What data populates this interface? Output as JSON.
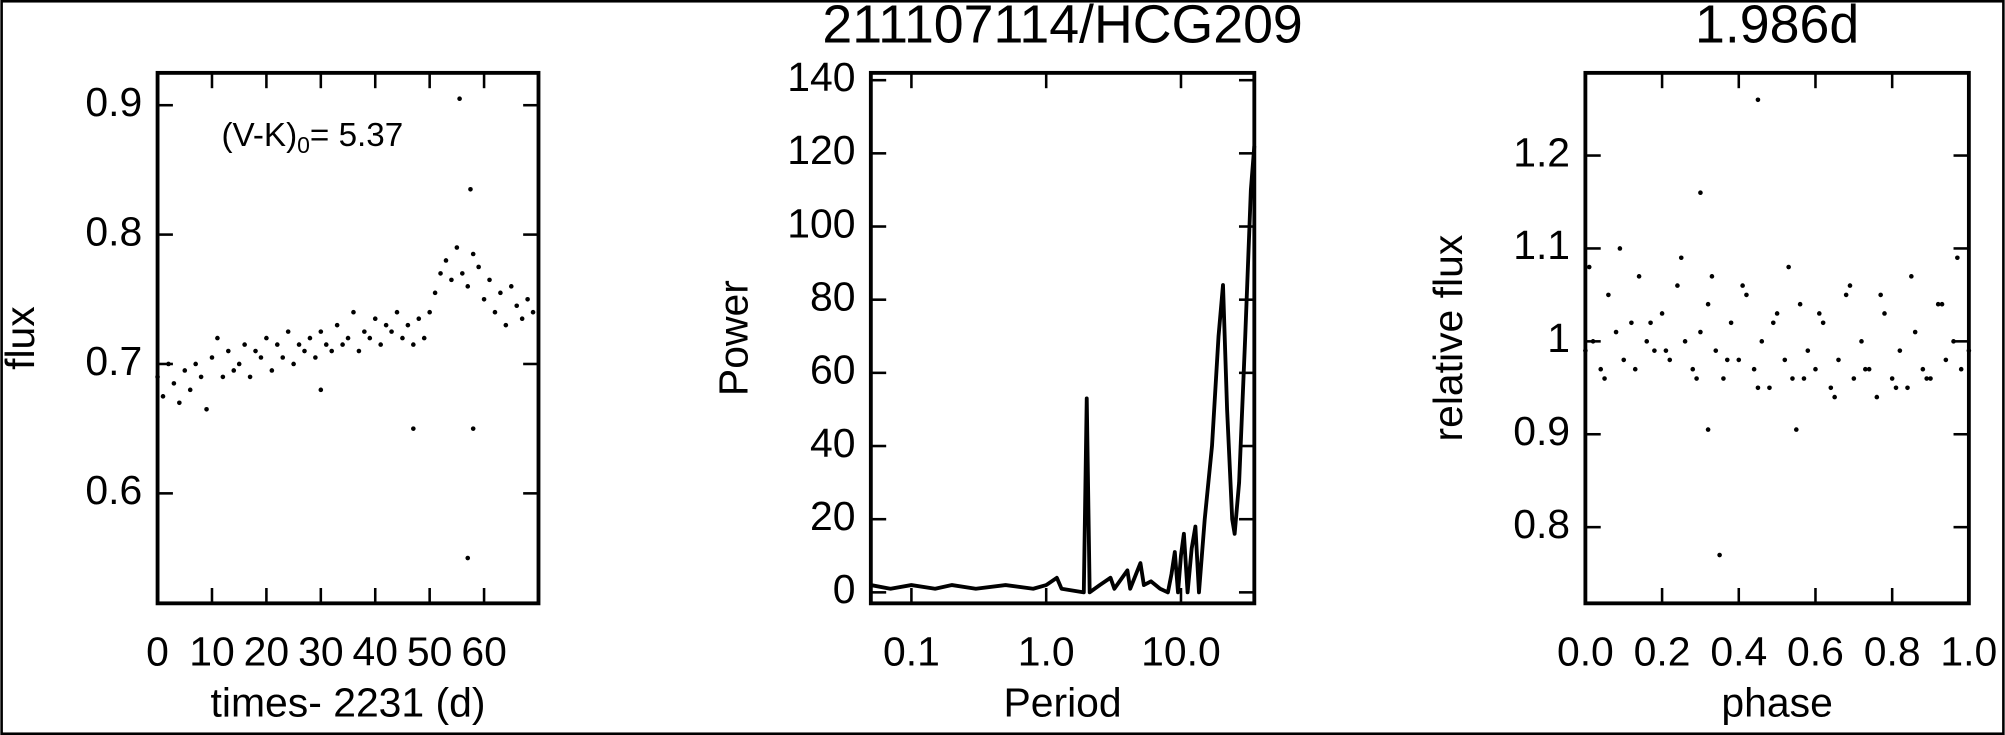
{
  "chart_data": [
    {
      "type": "scatter",
      "xlabel": "times- 2231 (d)",
      "ylabel": "flux",
      "annotation": {
        "text": "(V-K)",
        "subscript": "0",
        "value": "= 5.37"
      },
      "color": "#000000",
      "xlim": [
        0,
        70
      ],
      "ylim": [
        0.515,
        0.925
      ],
      "xticks": [
        0,
        10,
        20,
        30,
        40,
        50,
        60
      ],
      "yticks": [
        0.6,
        0.7,
        0.8,
        0.9
      ],
      "x": [
        0,
        1,
        2,
        3,
        4,
        5,
        6,
        7,
        8,
        9,
        10,
        11,
        12,
        13,
        14,
        15,
        16,
        17,
        18,
        19,
        20,
        21,
        22,
        23,
        24,
        25,
        26,
        27,
        28,
        29,
        30,
        31,
        32,
        33,
        34,
        35,
        36,
        37,
        38,
        39,
        40,
        41,
        42,
        43,
        44,
        45,
        46,
        47,
        48,
        49,
        50,
        51,
        52,
        53,
        54,
        55,
        56,
        57,
        58,
        59,
        60,
        61,
        62,
        63,
        64,
        65,
        66,
        67,
        68,
        69,
        55.5,
        57,
        47,
        58,
        57.5,
        30
      ],
      "values": [
        0.69,
        0.675,
        0.7,
        0.685,
        0.67,
        0.695,
        0.68,
        0.7,
        0.69,
        0.665,
        0.705,
        0.72,
        0.69,
        0.71,
        0.695,
        0.7,
        0.715,
        0.69,
        0.71,
        0.705,
        0.72,
        0.695,
        0.715,
        0.705,
        0.725,
        0.7,
        0.715,
        0.71,
        0.72,
        0.705,
        0.725,
        0.715,
        0.71,
        0.73,
        0.715,
        0.72,
        0.74,
        0.71,
        0.725,
        0.72,
        0.735,
        0.715,
        0.73,
        0.725,
        0.74,
        0.72,
        0.73,
        0.715,
        0.735,
        0.72,
        0.74,
        0.755,
        0.77,
        0.78,
        0.765,
        0.79,
        0.77,
        0.76,
        0.785,
        0.775,
        0.75,
        0.765,
        0.74,
        0.755,
        0.73,
        0.76,
        0.745,
        0.735,
        0.75,
        0.74,
        0.905,
        0.55,
        0.65,
        0.65,
        0.835,
        0.68
      ]
    },
    {
      "type": "line",
      "title": "211107114/HCG209",
      "xlabel": "Period",
      "ylabel": "Power",
      "color": "#000000",
      "xlog": true,
      "xlim": [
        0.05,
        35
      ],
      "ylim": [
        -3,
        142
      ],
      "xticks": [
        0.1,
        {
          "value": 1,
          "label": "1.0"
        },
        {
          "value": 10,
          "label": "10.0"
        }
      ],
      "yticks": [
        0,
        20,
        40,
        60,
        80,
        100,
        120,
        140
      ],
      "x": [
        0.05,
        0.07,
        0.1,
        0.15,
        0.2,
        0.3,
        0.5,
        0.8,
        1.0,
        1.2,
        1.3,
        1.9,
        2.0,
        2.1,
        2.5,
        3.0,
        3.2,
        4.0,
        4.2,
        5.0,
        5.3,
        6.0,
        7.0,
        8.0,
        8.5,
        9.0,
        9.5,
        10.0,
        10.5,
        11.2,
        12.0,
        12.8,
        13.6,
        15.0,
        17,
        19,
        20.5,
        22,
        24,
        25,
        27,
        30,
        33,
        35
      ],
      "values": [
        2,
        1,
        2,
        1,
        2,
        1,
        2,
        1,
        2,
        4,
        1,
        0,
        53,
        0,
        2,
        4,
        1,
        6,
        1,
        8,
        2,
        3,
        1,
        0,
        5,
        11,
        0,
        10,
        16,
        0,
        12,
        18,
        0,
        20,
        40,
        70,
        84,
        50,
        20,
        16,
        30,
        70,
        110,
        122
      ]
    },
    {
      "type": "scatter",
      "title": "1.986d",
      "xlabel": "phase",
      "ylabel": "relative flux",
      "color": "#000000",
      "xlim": [
        0,
        1
      ],
      "ylim": [
        0.718,
        1.289
      ],
      "xticks": [
        {
          "value": 0,
          "label": "0.0"
        },
        0.2,
        0.4,
        0.6,
        0.8,
        {
          "value": 1,
          "label": "1.0"
        }
      ],
      "yticks": [
        0.8,
        0.9,
        1.0,
        1.1,
        1.2
      ],
      "x": [
        0,
        0.02,
        0.04,
        0.06,
        0.08,
        0.1,
        0.12,
        0.14,
        0.16,
        0.18,
        0.2,
        0.22,
        0.24,
        0.26,
        0.28,
        0.3,
        0.32,
        0.34,
        0.36,
        0.38,
        0.4,
        0.42,
        0.44,
        0.46,
        0.48,
        0.5,
        0.52,
        0.54,
        0.56,
        0.58,
        0.6,
        0.62,
        0.64,
        0.66,
        0.68,
        0.7,
        0.72,
        0.74,
        0.76,
        0.78,
        0.8,
        0.82,
        0.84,
        0.86,
        0.88,
        0.9,
        0.92,
        0.94,
        0.96,
        0.98,
        1.0,
        0.01,
        0.05,
        0.09,
        0.13,
        0.17,
        0.21,
        0.25,
        0.29,
        0.33,
        0.37,
        0.41,
        0.45,
        0.49,
        0.53,
        0.57,
        0.61,
        0.65,
        0.69,
        0.73,
        0.77,
        0.81,
        0.85,
        0.89,
        0.93,
        0.97,
        0.3,
        0.35,
        0.45,
        0.32,
        0.55
      ],
      "values": [
        0.99,
        1.0,
        0.97,
        1.05,
        1.01,
        0.98,
        1.02,
        1.07,
        1.0,
        0.99,
        1.03,
        0.98,
        1.06,
        1.0,
        0.97,
        1.01,
        1.04,
        0.99,
        0.96,
        1.02,
        0.98,
        1.05,
        0.97,
        1.0,
        0.95,
        1.03,
        0.98,
        0.96,
        1.04,
        0.99,
        0.97,
        1.02,
        0.95,
        0.98,
        1.05,
        0.96,
        1.0,
        0.97,
        0.94,
        1.03,
        0.96,
        0.99,
        0.95,
        1.01,
        0.97,
        0.96,
        1.04,
        0.98,
        1.0,
        0.97,
        0.99,
        1.08,
        0.96,
        1.1,
        0.97,
        1.02,
        0.99,
        1.09,
        0.96,
        1.07,
        0.98,
        1.06,
        0.95,
        1.02,
        1.08,
        0.96,
        1.03,
        0.94,
        1.06,
        0.97,
        1.05,
        0.95,
        1.07,
        0.96,
        1.04,
        1.09,
        1.16,
        0.77,
        1.26,
        0.905,
        0.905
      ]
    }
  ]
}
